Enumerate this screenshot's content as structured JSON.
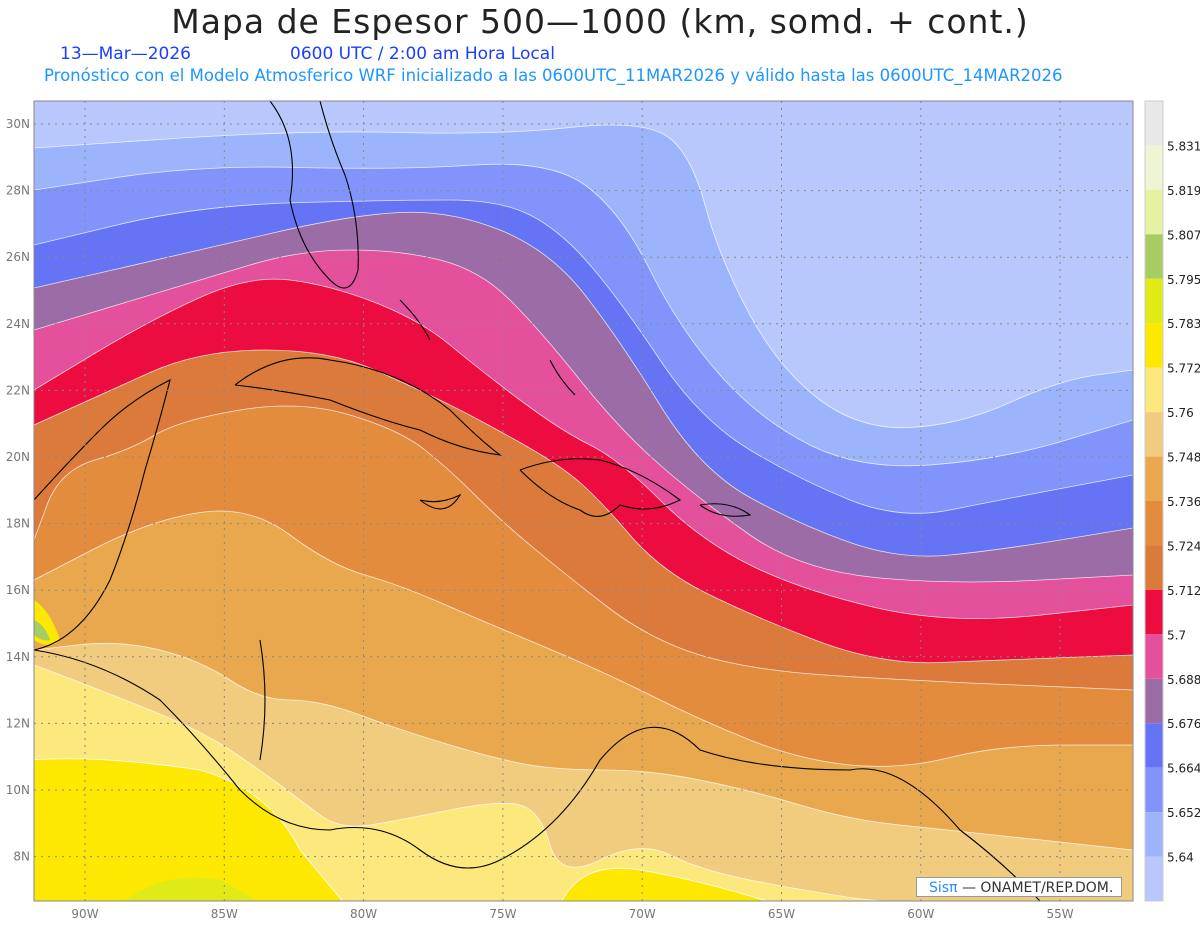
{
  "header": {
    "title": "Mapa de Espesor 500—1000 (km, somd. + cont.)",
    "date": "13—Mar—2026",
    "time": "0600 UTC / 2:00 am Hora Local",
    "subtitle": "Pronóstico con el Modelo Atmosferico WRF inicializado a las 0600UTC_11MAR2026 y válido hasta las  0600UTC_14MAR2026"
  },
  "axes": {
    "lat_labels": [
      "30N",
      "28N",
      "26N",
      "24N",
      "22N",
      "20N",
      "18N",
      "16N",
      "14N",
      "12N",
      "10N",
      "8N"
    ],
    "lon_labels": [
      "90W",
      "85W",
      "80W",
      "75W",
      "70W",
      "65W",
      "60W",
      "55W"
    ]
  },
  "colorbar": {
    "labels": [
      "5.831",
      "5.819",
      "5.807",
      "5.795",
      "5.783",
      "5.772",
      "5.76",
      "5.748",
      "5.736",
      "5.724",
      "5.712",
      "5.7",
      "5.688",
      "5.676",
      "5.664",
      "5.652",
      "5.64"
    ],
    "colors": [
      "#e8e8e8",
      "#eef5d2",
      "#e6f2a2",
      "#a8cc64",
      "#e0ea16",
      "#fce800",
      "#fde87e",
      "#f2cc7e",
      "#eaa84e",
      "#e48c3e",
      "#dc7a3c",
      "#ec0c40",
      "#e4509c",
      "#9c6ca6",
      "#6474f4",
      "#8094fc",
      "#9cb4fc",
      "#b8c8fc"
    ]
  },
  "credit": {
    "brand": "Sisπ",
    "text": " — ONAMET/REP.DOM."
  }
}
